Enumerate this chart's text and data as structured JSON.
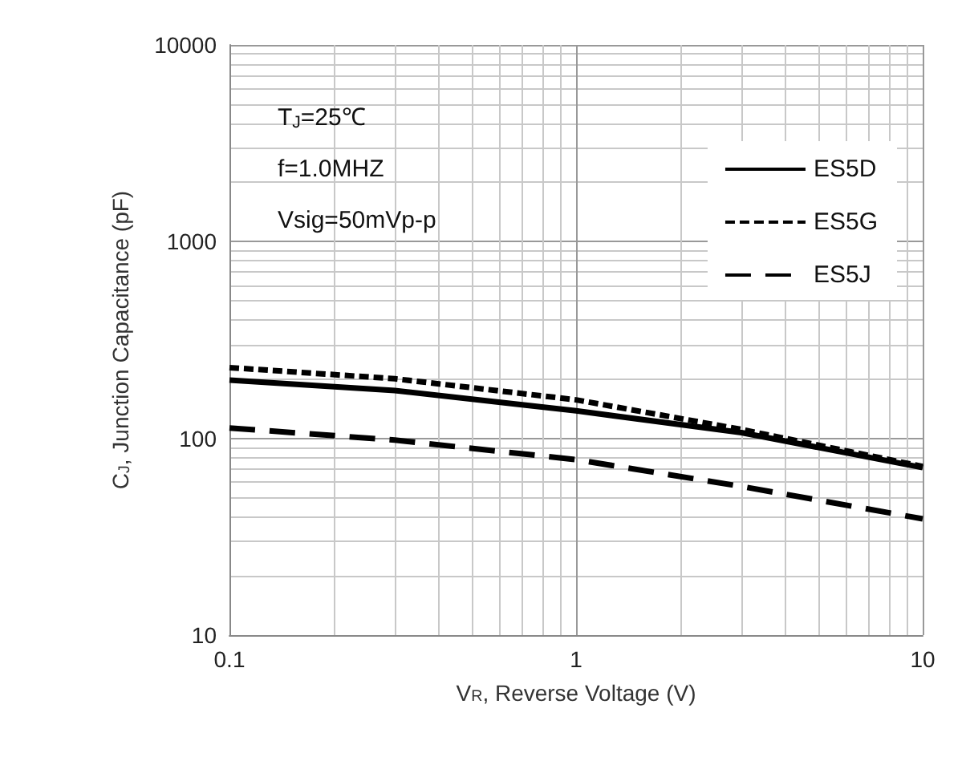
{
  "chart_data": {
    "type": "line",
    "xlabel": "V$_{R}$, Reverse Voltage (V)",
    "ylabel": "C$_{J}$, Junction Capacitance (pF)",
    "log": "xy",
    "xlim": [
      0.1,
      10
    ],
    "ylim": [
      10,
      10000
    ],
    "xticks": [
      0.1,
      1,
      10
    ],
    "yticks": [
      10,
      100,
      1000,
      10000
    ],
    "grid": true,
    "legend": "top right",
    "marker": "none",
    "annotations": [
      "T$_{J}$=25℃",
      "f=1.0MHZ",
      "Vsig=50mVp-p"
    ],
    "x": [
      0.1,
      0.3,
      1,
      3,
      10
    ],
    "series": [
      {
        "name": "ES5D",
        "color": "#000000",
        "line_style": "solid",
        "values": [
          198,
          175,
          138,
          107,
          71
        ]
      },
      {
        "name": "ES5G",
        "color": "#000000",
        "line_style": "dotted",
        "values": [
          229,
          201,
          157,
          111,
          72
        ]
      },
      {
        "name": "ES5J",
        "color": "#000000",
        "line_style": "dashed",
        "values": [
          113,
          98,
          78,
          57,
          39
        ]
      }
    ]
  }
}
